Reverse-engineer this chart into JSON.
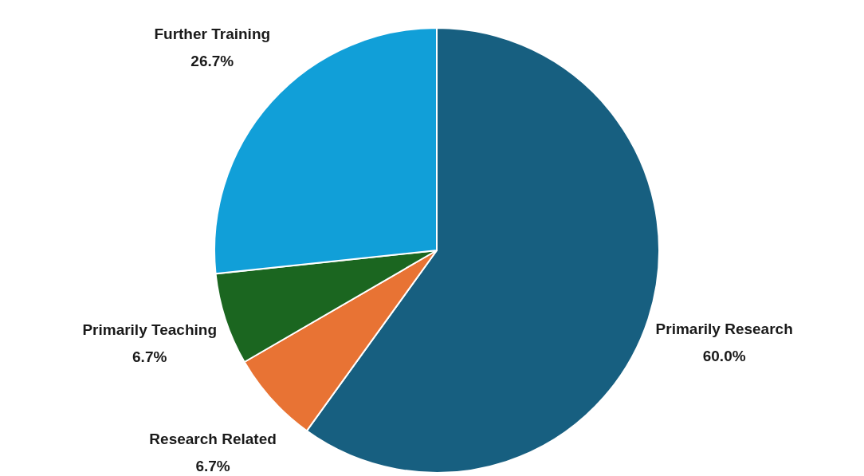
{
  "chart_data": {
    "type": "pie",
    "categories": [
      "Primarily Research",
      "Research Related",
      "Primarily Teaching",
      "Further Training"
    ],
    "values": [
      60.0,
      6.7,
      6.7,
      26.7
    ],
    "colors": [
      "#175f80",
      "#e87334",
      "#1b6620",
      "#119fd8"
    ],
    "value_labels": [
      "60.0%",
      "6.7%",
      "6.7%",
      "26.7%"
    ]
  }
}
